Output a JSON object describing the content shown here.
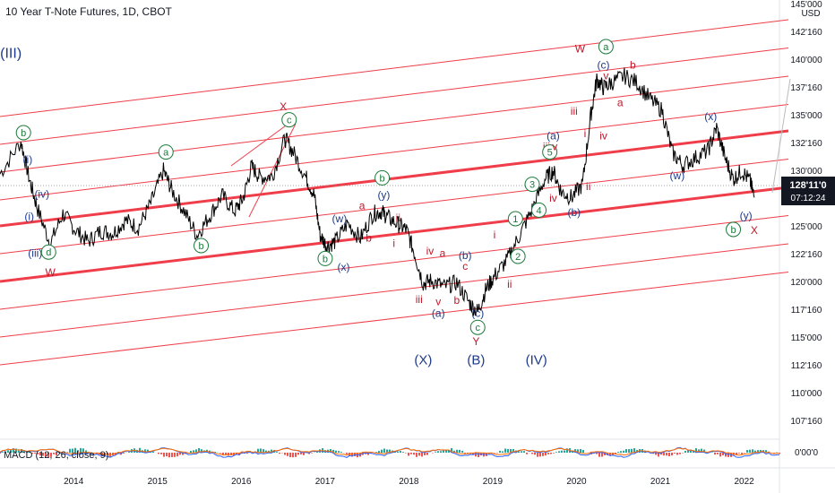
{
  "header": {
    "title": "10 Year T-Note Futures, 1D, CBOT",
    "currency": "USD"
  },
  "price_badge": {
    "price": "128'11'0",
    "countdown": "07:12:24"
  },
  "indicator": {
    "label": "MACD (12, 26, close, 9)",
    "zero_label": "0'00'0"
  },
  "colors": {
    "wave_blue": "#1e3a8a",
    "wave_red": "#c0182a",
    "wave_green": "#1b7a3a",
    "channel": "#ef3e4a",
    "price": "#000000",
    "badge": "#131722"
  },
  "chart_data": {
    "type": "line",
    "title": "10 Year T-Note Futures, 1D, CBOT",
    "ylim": [
      106,
      145
    ],
    "xlim": [
      2013.1,
      2022.4
    ],
    "y_tick_labels": [
      "145'000",
      "142'160",
      "140'000",
      "137'160",
      "135'000",
      "132'160",
      "130'000",
      "127'160",
      "125'000",
      "122'160",
      "120'000",
      "117'160",
      "115'000",
      "112'160",
      "110'000",
      "107'160"
    ],
    "x_tick_labels": [
      "2014",
      "2015",
      "2016",
      "2017",
      "2018",
      "2019",
      "2020",
      "2021",
      "2022"
    ],
    "series": [
      {
        "values": [
          [
            2013.1,
            130.5
          ],
          [
            2013.35,
            133.5
          ],
          [
            2013.45,
            130
          ],
          [
            2013.55,
            127.2
          ],
          [
            2013.7,
            124.0
          ],
          [
            2013.85,
            126.8
          ],
          [
            2014.0,
            125.3
          ],
          [
            2014.15,
            124.2
          ],
          [
            2014.3,
            125.2
          ],
          [
            2014.45,
            125.0
          ],
          [
            2014.6,
            126.2
          ],
          [
            2014.75,
            125.5
          ],
          [
            2014.9,
            127.8
          ],
          [
            2015.05,
            130.8
          ],
          [
            2015.15,
            129.0
          ],
          [
            2015.3,
            127.0
          ],
          [
            2015.45,
            124.8
          ],
          [
            2015.6,
            126.6
          ],
          [
            2015.75,
            128.5
          ],
          [
            2015.9,
            127.0
          ],
          [
            2016.0,
            128.2
          ],
          [
            2016.1,
            131.2
          ],
          [
            2016.2,
            130.2
          ],
          [
            2016.35,
            130.3
          ],
          [
            2016.5,
            133.8
          ],
          [
            2016.6,
            132.5
          ],
          [
            2016.75,
            130.2
          ],
          [
            2016.85,
            128.5
          ],
          [
            2016.92,
            124.8
          ],
          [
            2017.0,
            123.8
          ],
          [
            2017.1,
            124.2
          ],
          [
            2017.25,
            125.9
          ],
          [
            2017.4,
            124.5
          ],
          [
            2017.55,
            126.8
          ],
          [
            2017.65,
            127.0
          ],
          [
            2017.72,
            126.5
          ],
          [
            2017.85,
            125.8
          ],
          [
            2017.95,
            125.3
          ],
          [
            2018.05,
            123.0
          ],
          [
            2018.15,
            120.3
          ],
          [
            2018.25,
            120.6
          ],
          [
            2018.4,
            120.0
          ],
          [
            2018.55,
            120.4
          ],
          [
            2018.7,
            118.5
          ],
          [
            2018.8,
            117.7
          ],
          [
            2018.9,
            119.8
          ],
          [
            2019.0,
            121.0
          ],
          [
            2019.15,
            122.5
          ],
          [
            2019.3,
            124.8
          ],
          [
            2019.45,
            127.2
          ],
          [
            2019.6,
            130.0
          ],
          [
            2019.7,
            130.8
          ],
          [
            2019.8,
            128.8
          ],
          [
            2019.92,
            128.3
          ],
          [
            2020.05,
            129.5
          ],
          [
            2020.15,
            136.0
          ],
          [
            2020.22,
            139.3
          ],
          [
            2020.3,
            138.5
          ],
          [
            2020.4,
            139.0
          ],
          [
            2020.55,
            139.6
          ],
          [
            2020.7,
            139.0
          ],
          [
            2020.85,
            137.5
          ],
          [
            2021.0,
            136.4
          ],
          [
            2021.12,
            132.5
          ],
          [
            2021.25,
            131.3
          ],
          [
            2021.4,
            132.0
          ],
          [
            2021.55,
            132.7
          ],
          [
            2021.65,
            134.8
          ],
          [
            2021.75,
            132.0
          ],
          [
            2021.85,
            130.0
          ],
          [
            2021.95,
            130.8
          ],
          [
            2022.05,
            129.8
          ],
          [
            2022.1,
            128.3
          ]
        ]
      }
    ],
    "annotations": [
      {
        "text": "(III)",
        "x": 2013.23,
        "y": 141.3,
        "color": "blue",
        "size": 16
      },
      {
        "text": "b",
        "x": 2013.38,
        "y": 134.0,
        "color": "green",
        "circle": true
      },
      {
        "text": "(i)",
        "x": 2013.43,
        "y": 131.5,
        "color": "blue"
      },
      {
        "text": "(iv)",
        "x": 2013.6,
        "y": 128.3,
        "color": "blue"
      },
      {
        "text": "(i)",
        "x": 2013.45,
        "y": 126.2,
        "color": "blue"
      },
      {
        "text": "(iii)",
        "x": 2013.52,
        "y": 122.8,
        "color": "blue"
      },
      {
        "text": "d",
        "x": 2013.68,
        "y": 122.9,
        "color": "green",
        "circle": true
      },
      {
        "text": "W",
        "x": 2013.7,
        "y": 121.0,
        "color": "red"
      },
      {
        "text": "a",
        "x": 2015.08,
        "y": 132.2,
        "color": "green",
        "circle": true
      },
      {
        "text": "b",
        "x": 2015.5,
        "y": 123.5,
        "color": "green",
        "circle": true
      },
      {
        "text": "X",
        "x": 2016.48,
        "y": 136.4,
        "color": "red"
      },
      {
        "text": "c",
        "x": 2016.55,
        "y": 135.2,
        "color": "green",
        "circle": true
      },
      {
        "text": "(w)",
        "x": 2017.15,
        "y": 126.0,
        "color": "blue"
      },
      {
        "text": "a",
        "x": 2017.42,
        "y": 127.2,
        "color": "red"
      },
      {
        "text": "b",
        "x": 2016.98,
        "y": 122.3,
        "color": "green",
        "circle": true
      },
      {
        "text": "(x)",
        "x": 2017.2,
        "y": 121.5,
        "color": "blue"
      },
      {
        "text": "b",
        "x": 2017.5,
        "y": 124.2,
        "color": "red"
      },
      {
        "text": "b",
        "x": 2017.66,
        "y": 129.8,
        "color": "green",
        "circle": true
      },
      {
        "text": "(y)",
        "x": 2017.68,
        "y": 128.2,
        "color": "blue"
      },
      {
        "text": "ii",
        "x": 2017.85,
        "y": 126.1,
        "color": "red"
      },
      {
        "text": "i",
        "x": 2017.8,
        "y": 123.7,
        "color": "red"
      },
      {
        "text": "iv",
        "x": 2018.23,
        "y": 123.0,
        "color": "red"
      },
      {
        "text": "a",
        "x": 2018.38,
        "y": 122.8,
        "color": "red"
      },
      {
        "text": "iii",
        "x": 2018.1,
        "y": 118.5,
        "color": "red"
      },
      {
        "text": "v",
        "x": 2018.33,
        "y": 118.3,
        "color": "red"
      },
      {
        "text": "(a)",
        "x": 2018.33,
        "y": 117.2,
        "color": "blue"
      },
      {
        "text": "b",
        "x": 2018.55,
        "y": 118.4,
        "color": "red"
      },
      {
        "text": "c",
        "x": 2018.65,
        "y": 121.6,
        "color": "red"
      },
      {
        "text": "(b)",
        "x": 2018.65,
        "y": 122.6,
        "color": "blue"
      },
      {
        "text": "(c)",
        "x": 2018.8,
        "y": 117.2,
        "color": "blue"
      },
      {
        "text": "c",
        "x": 2018.8,
        "y": 115.9,
        "color": "green",
        "circle": true
      },
      {
        "text": "Y",
        "x": 2018.78,
        "y": 114.6,
        "color": "red"
      },
      {
        "text": "(X)",
        "x": 2018.15,
        "y": 112.8,
        "color": "blue",
        "size": 15
      },
      {
        "text": "(B)",
        "x": 2018.78,
        "y": 112.8,
        "color": "blue",
        "size": 15
      },
      {
        "text": "(IV)",
        "x": 2019.5,
        "y": 112.8,
        "color": "blue",
        "size": 15
      },
      {
        "text": "i",
        "x": 2019.0,
        "y": 124.5,
        "color": "red"
      },
      {
        "text": "1",
        "x": 2019.25,
        "y": 126.0,
        "color": "green",
        "circle": true
      },
      {
        "text": "2",
        "x": 2019.28,
        "y": 122.5,
        "color": "green",
        "circle": true
      },
      {
        "text": "ii",
        "x": 2019.18,
        "y": 119.9,
        "color": "red"
      },
      {
        "text": "3",
        "x": 2019.45,
        "y": 129.2,
        "color": "green",
        "circle": true
      },
      {
        "text": "4",
        "x": 2019.53,
        "y": 126.8,
        "color": "green",
        "circle": true
      },
      {
        "text": "iv",
        "x": 2019.7,
        "y": 127.9,
        "color": "red"
      },
      {
        "text": "iii",
        "x": 2019.62,
        "y": 132.7,
        "color": "red"
      },
      {
        "text": "5",
        "x": 2019.66,
        "y": 132.2,
        "color": "green",
        "circle": true
      },
      {
        "text": "v",
        "x": 2019.72,
        "y": 132.7,
        "color": "red"
      },
      {
        "text": "(a)",
        "x": 2019.7,
        "y": 133.7,
        "color": "blue"
      },
      {
        "text": "(b)",
        "x": 2019.95,
        "y": 126.6,
        "color": "blue"
      },
      {
        "text": "ii",
        "x": 2020.12,
        "y": 129.0,
        "color": "red"
      },
      {
        "text": "i",
        "x": 2020.08,
        "y": 133.9,
        "color": "red"
      },
      {
        "text": "iii",
        "x": 2019.95,
        "y": 136.0,
        "color": "red"
      },
      {
        "text": "iv",
        "x": 2020.3,
        "y": 133.7,
        "color": "red"
      },
      {
        "text": "W",
        "x": 2020.02,
        "y": 141.8,
        "color": "red"
      },
      {
        "text": "a",
        "x": 2020.33,
        "y": 142.0,
        "color": "green",
        "circle": true
      },
      {
        "text": "(c)",
        "x": 2020.3,
        "y": 140.3,
        "color": "blue"
      },
      {
        "text": "v",
        "x": 2020.33,
        "y": 139.3,
        "color": "red"
      },
      {
        "text": "a",
        "x": 2020.5,
        "y": 136.8,
        "color": "red"
      },
      {
        "text": "b",
        "x": 2020.65,
        "y": 140.3,
        "color": "red"
      },
      {
        "text": "(w)",
        "x": 2021.18,
        "y": 130.0,
        "color": "blue"
      },
      {
        "text": "(x)",
        "x": 2021.58,
        "y": 135.5,
        "color": "blue"
      },
      {
        "text": "(y)",
        "x": 2022.0,
        "y": 126.3,
        "color": "blue"
      },
      {
        "text": "b",
        "x": 2021.85,
        "y": 125.0,
        "color": "green",
        "circle": true
      },
      {
        "text": "X",
        "x": 2022.1,
        "y": 124.9,
        "color": "red"
      }
    ]
  }
}
